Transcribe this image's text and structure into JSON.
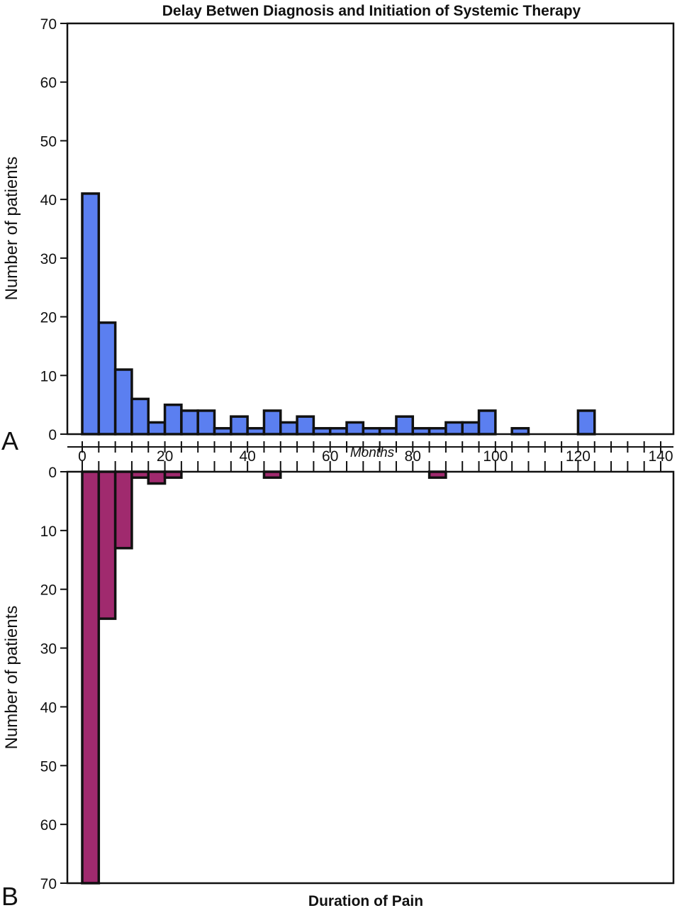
{
  "chart_data": [
    {
      "panel": "A",
      "type": "bar",
      "title": "Delay Betwen Diagnosis and Initiation of Systemic Therapy",
      "xlabel": "Months",
      "ylabel": "Number of patients",
      "bin_width": 4,
      "bin_starts": [
        0,
        4,
        8,
        12,
        16,
        20,
        24,
        28,
        32,
        36,
        40,
        44,
        48,
        52,
        56,
        60,
        64,
        68,
        72,
        76,
        80,
        84,
        88,
        92,
        96,
        100,
        104,
        108,
        112,
        116,
        120
      ],
      "values": [
        41,
        19,
        11,
        6,
        2,
        5,
        4,
        4,
        1,
        3,
        1,
        4,
        2,
        3,
        1,
        1,
        2,
        1,
        1,
        3,
        1,
        1,
        2,
        2,
        4,
        0,
        1,
        0,
        0,
        0,
        4
      ],
      "xlim": [
        0,
        140
      ],
      "ylim": [
        0,
        70
      ],
      "x_ticks": [
        0,
        20,
        40,
        60,
        80,
        100,
        120,
        140
      ],
      "y_ticks": [
        0,
        10,
        20,
        30,
        40,
        50,
        60,
        70
      ],
      "color": "#5b7ff0",
      "grid": false
    },
    {
      "panel": "B",
      "type": "bar",
      "title": "Duration of Pain",
      "xlabel": "Months",
      "ylabel": "Number of patients",
      "orientation": "downward",
      "bin_width": 4,
      "bin_starts": [
        0,
        4,
        8,
        12,
        16,
        20,
        44,
        84
      ],
      "values": [
        70,
        25,
        13,
        1,
        2,
        1,
        1,
        1
      ],
      "xlim": [
        0,
        140
      ],
      "ylim": [
        0,
        70
      ],
      "y_ticks": [
        0,
        10,
        20,
        30,
        40,
        50,
        60,
        70
      ],
      "color": "#a02a6e",
      "grid": false
    }
  ]
}
